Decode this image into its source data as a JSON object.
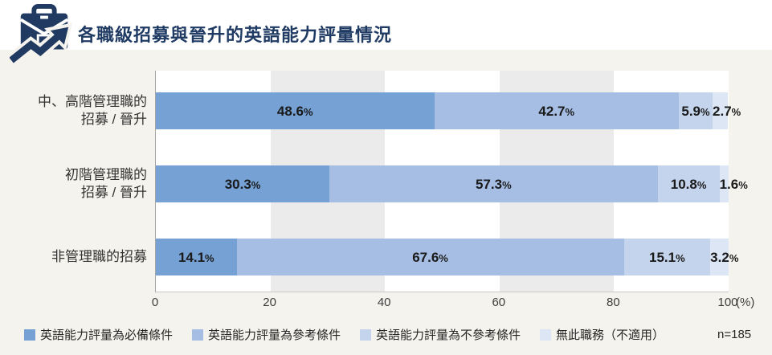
{
  "header": {
    "title": "各職級招募與晉升的英語能力評量情況",
    "icon": "briefcase-trend-icon",
    "title_color": "#1F3A63"
  },
  "chart_data": {
    "type": "bar",
    "orientation": "horizontal",
    "stacked": true,
    "categories": [
      [
        "中、高階管理職的",
        "招募 / 晉升"
      ],
      [
        "初階管理職的",
        "招募 / 晉升"
      ],
      [
        "非管理職的招募"
      ]
    ],
    "series": [
      {
        "name": "英語能力評量為必備條件",
        "color": "#75A1D4",
        "values": [
          48.6,
          30.3,
          14.1
        ]
      },
      {
        "name": "英語能力評量為參考條件",
        "color": "#A6BEE4",
        "values": [
          42.7,
          57.3,
          67.6
        ]
      },
      {
        "name": "英語能力評量為不參考條件",
        "color": "#C4D4ED",
        "values": [
          5.9,
          10.8,
          15.1
        ]
      },
      {
        "name": "無此職務（不適用）",
        "color": "#DCE6F5",
        "values": [
          2.7,
          1.6,
          3.2
        ]
      }
    ],
    "value_suffix": "%",
    "x_ticks": [
      "0",
      "20",
      "40",
      "60",
      "80",
      "100"
    ],
    "x_axis_unit": "(%)",
    "xlim": [
      0,
      100
    ],
    "plot_bands": [
      "#FFFFFF",
      "#EBEBEB",
      "#FFFFFF",
      "#EBEBEB",
      "#FFFFFF"
    ],
    "legend_position": "bottom",
    "sample_label": "n=185"
  }
}
